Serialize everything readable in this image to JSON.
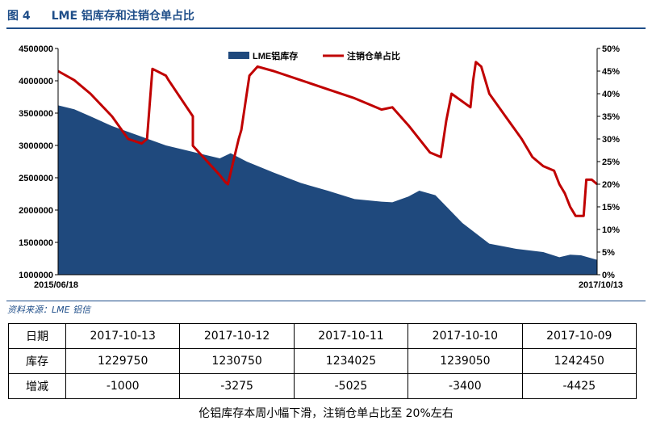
{
  "figure": {
    "number": "图 4",
    "title": "LME 铝库存和注销仓单占比"
  },
  "source": "资料来源：LME   铝信",
  "caption": "伦铝库存本周小幅下滑，注销仓单占比至 20%左右",
  "colors": {
    "title": "#1F4E89",
    "area": "#1F497D",
    "line": "#C00000"
  },
  "table": {
    "headers": [
      "日期",
      "2017-10-13",
      "2017-10-12",
      "2017-10-11",
      "2017-10-10",
      "2017-10-09"
    ],
    "rows": [
      {
        "label": "库存",
        "values": [
          "1229750",
          "1230750",
          "1234025",
          "1239050",
          "1242450"
        ]
      },
      {
        "label": "增减",
        "values": [
          "-1000",
          "-3275",
          "-5025",
          "-3400",
          "-4425"
        ]
      }
    ]
  },
  "chart_data": {
    "type": "area+line",
    "x_start_label": "2015/06/18",
    "x_end_label": "2017/10/13",
    "legend": {
      "position": "top-center",
      "entries": [
        "LME铝库存",
        "注销仓单占比"
      ]
    },
    "y_left": {
      "min": 1000000,
      "max": 4500000,
      "ticks": [
        "1000000",
        "1500000",
        "2000000",
        "2500000",
        "3000000",
        "3500000",
        "4000000",
        "4500000"
      ]
    },
    "y_right": {
      "min": 0,
      "max": 50,
      "ticks": [
        "0%",
        "5%",
        "10%",
        "15%",
        "20%",
        "25%",
        "30%",
        "35%",
        "40%",
        "45%",
        "50%"
      ]
    },
    "series": [
      {
        "name": "LME铝库存",
        "kind": "area",
        "x": [
          0,
          0.03,
          0.06,
          0.1,
          0.15,
          0.2,
          0.25,
          0.3,
          0.32,
          0.35,
          0.4,
          0.45,
          0.5,
          0.55,
          0.6,
          0.62,
          0.65,
          0.67,
          0.7,
          0.75,
          0.8,
          0.85,
          0.9,
          0.93,
          0.95,
          0.97,
          1
        ],
        "values": [
          3620000,
          3560000,
          3450000,
          3300000,
          3150000,
          3000000,
          2900000,
          2800000,
          2880000,
          2750000,
          2580000,
          2420000,
          2300000,
          2170000,
          2130000,
          2120000,
          2210000,
          2300000,
          2230000,
          1800000,
          1480000,
          1400000,
          1350000,
          1270000,
          1310000,
          1300000,
          1230000
        ]
      },
      {
        "name": "注销仓单占比",
        "kind": "line",
        "x": [
          0,
          0.03,
          0.06,
          0.1,
          0.13,
          0.155,
          0.165,
          0.175,
          0.2,
          0.205,
          0.25,
          0.25,
          0.3,
          0.31,
          0.315,
          0.335,
          0.34,
          0.355,
          0.37,
          0.4,
          0.45,
          0.5,
          0.55,
          0.6,
          0.62,
          0.65,
          0.69,
          0.71,
          0.72,
          0.73,
          0.765,
          0.77,
          0.775,
          0.785,
          0.8,
          0.83,
          0.86,
          0.88,
          0.9,
          0.92,
          0.93,
          0.94,
          0.95,
          0.96,
          0.975,
          0.98,
          0.99,
          1
        ],
        "values": [
          45,
          43,
          40,
          35,
          30,
          29,
          30,
          45.5,
          44,
          43,
          35,
          28.5,
          22,
          20.5,
          20,
          30,
          32,
          44,
          46,
          45,
          43,
          41,
          39,
          36.5,
          37,
          33,
          27,
          26,
          34,
          40,
          37,
          43,
          47,
          46,
          40,
          35,
          30,
          26,
          24,
          23,
          20,
          18,
          15,
          13,
          13,
          21,
          21,
          20
        ]
      }
    ]
  }
}
